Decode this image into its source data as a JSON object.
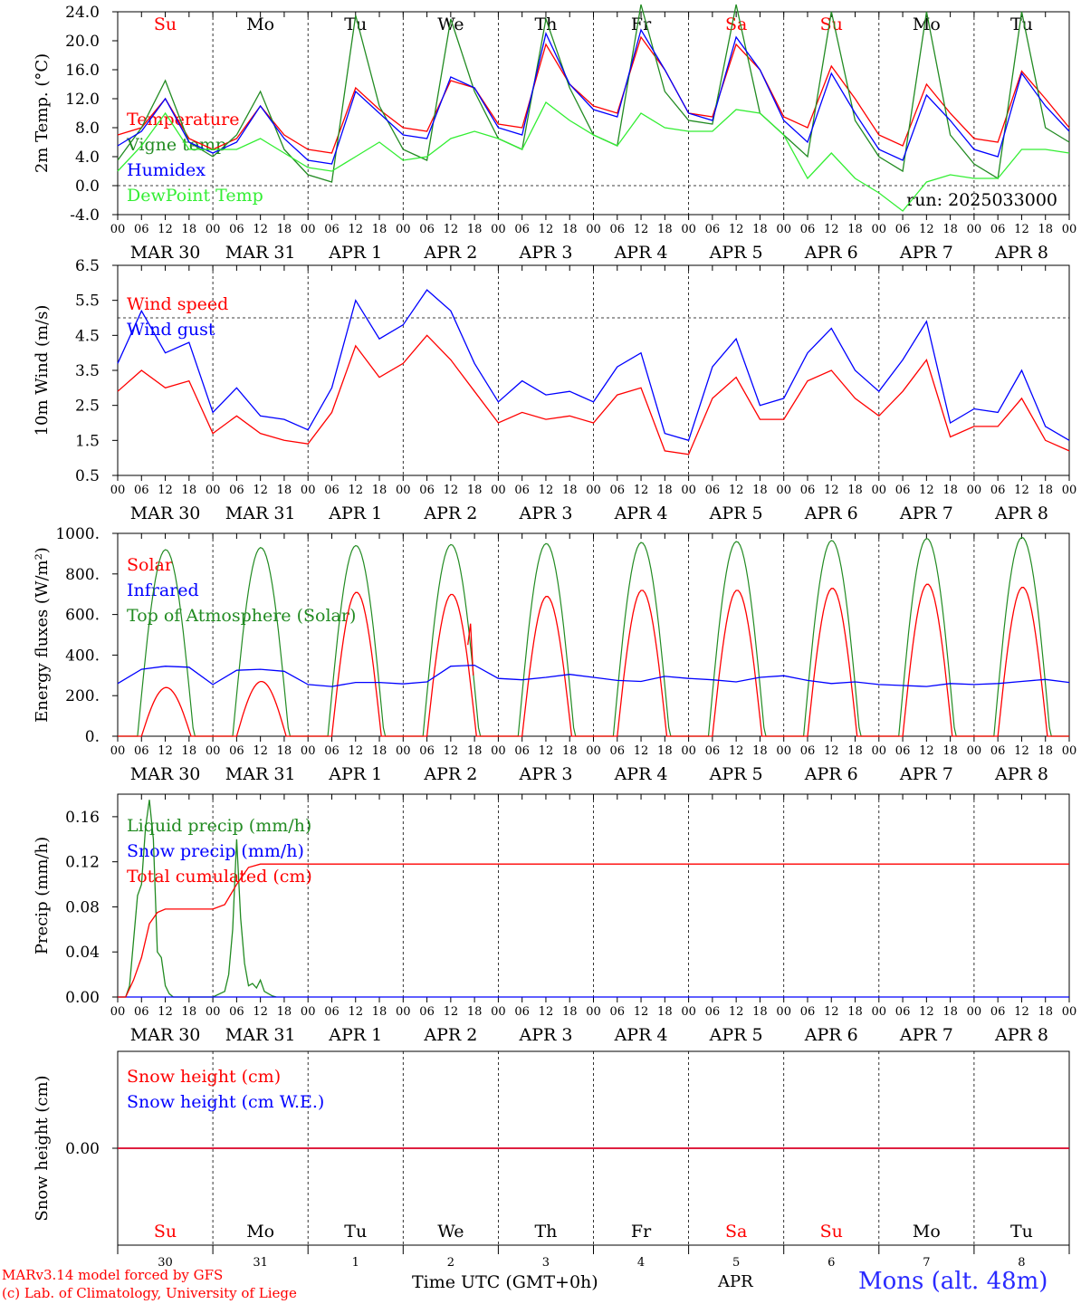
{
  "chart_data": [
    {
      "type": "line",
      "ylabel": "2m Temp. (°C)",
      "ylim": [
        -4,
        24
      ],
      "yticks": [
        "-4.0",
        "0.0",
        "4.0",
        "8.0",
        "12.0",
        "16.0",
        "20.0",
        "24.0"
      ],
      "run_label": "run: 2025033000",
      "day_abbr": [
        "Su",
        "Mo",
        "Tu",
        "We",
        "Th",
        "Fr",
        "Sa",
        "Su",
        "Mo",
        "Tu"
      ],
      "weekend_color": "#ff0000",
      "x_unit": "hours since 2025-03-30 00 UTC",
      "series": [
        {
          "name": "Temperature",
          "color": "#ff0000",
          "x": [
            0,
            6,
            12,
            18,
            24,
            30,
            36,
            42,
            48,
            54,
            60,
            66,
            72,
            78,
            84,
            90,
            96,
            102,
            108,
            114,
            120,
            126,
            132,
            138,
            144,
            150,
            156,
            162,
            168,
            174,
            180,
            186,
            192,
            198,
            204,
            210,
            216,
            222,
            228,
            234,
            240
          ],
          "y": [
            7,
            8,
            12,
            6.5,
            5,
            6.5,
            11,
            7,
            5,
            4.5,
            13.5,
            10.5,
            8,
            7.5,
            14.5,
            13.5,
            8.5,
            8,
            19.5,
            14,
            11,
            10,
            20.5,
            16,
            10,
            9.5,
            19.5,
            16,
            9.5,
            8,
            16.5,
            12,
            7,
            5.5,
            14,
            10,
            6.5,
            6,
            15.8,
            12,
            8
          ]
        },
        {
          "name": "Vigne temp",
          "color": "#228b22",
          "x": [
            0,
            6,
            12,
            18,
            24,
            30,
            36,
            42,
            48,
            54,
            60,
            66,
            72,
            78,
            84,
            90,
            96,
            102,
            108,
            114,
            120,
            126,
            132,
            138,
            144,
            150,
            156,
            162,
            168,
            174,
            180,
            186,
            192,
            198,
            204,
            210,
            216,
            222,
            228,
            234,
            240
          ],
          "y": [
            3.5,
            8,
            14.5,
            6,
            4,
            7,
            13,
            5,
            1.5,
            0.5,
            23.5,
            11,
            5,
            3.5,
            23,
            13,
            6.5,
            5,
            23,
            13.5,
            7,
            5.5,
            25,
            13,
            9,
            8.5,
            25,
            10,
            7,
            4,
            24,
            9,
            4,
            2,
            24,
            7,
            3,
            1,
            24,
            8,
            6
          ]
        },
        {
          "name": "Humidex",
          "color": "#0000ff",
          "x": [
            0,
            6,
            12,
            18,
            24,
            30,
            36,
            42,
            48,
            54,
            60,
            66,
            72,
            78,
            84,
            90,
            96,
            102,
            108,
            114,
            120,
            126,
            132,
            138,
            144,
            150,
            156,
            162,
            168,
            174,
            180,
            186,
            192,
            198,
            204,
            210,
            216,
            222,
            228,
            234,
            240
          ],
          "y": [
            5.5,
            7.5,
            12,
            6,
            4.5,
            6,
            11,
            6.5,
            3.5,
            3,
            13,
            10,
            7,
            6.5,
            15,
            13.5,
            8,
            7,
            21,
            14,
            10.5,
            9.5,
            21.5,
            16,
            10,
            9,
            20.5,
            16,
            9,
            6,
            15.5,
            10,
            5,
            3.5,
            12.5,
            9,
            5,
            4,
            15.5,
            11,
            7.5
          ]
        },
        {
          "name": "DewPoint Temp",
          "color": "#33ee33",
          "x": [
            0,
            6,
            12,
            18,
            24,
            30,
            36,
            42,
            48,
            54,
            60,
            66,
            72,
            78,
            84,
            90,
            96,
            102,
            108,
            114,
            120,
            126,
            132,
            138,
            144,
            150,
            156,
            162,
            168,
            174,
            180,
            186,
            192,
            198,
            204,
            210,
            216,
            222,
            228,
            234,
            240
          ],
          "y": [
            2,
            5.5,
            10,
            5,
            5,
            5,
            6.5,
            4.5,
            2.5,
            2,
            4,
            6,
            3.5,
            4,
            6.5,
            7.5,
            6.5,
            5,
            11.5,
            9,
            7,
            5.5,
            10,
            8,
            7.5,
            7.5,
            10.5,
            10,
            7,
            1,
            4.5,
            1,
            -1,
            -3.5,
            0.5,
            1.5,
            1,
            1,
            5,
            5,
            4.5
          ]
        }
      ]
    },
    {
      "type": "line",
      "ylabel": "10m Wind (m/s)",
      "ylim": [
        0.5,
        6.5
      ],
      "yticks": [
        "0.5",
        "1.5",
        "2.5",
        "3.5",
        "4.5",
        "5.5",
        "6.5"
      ],
      "reference_line": 5,
      "series": [
        {
          "name": "Wind speed",
          "color": "#ff0000",
          "x": [
            0,
            6,
            12,
            18,
            24,
            30,
            36,
            42,
            48,
            54,
            60,
            66,
            72,
            78,
            84,
            90,
            96,
            102,
            108,
            114,
            120,
            126,
            132,
            138,
            144,
            150,
            156,
            162,
            168,
            174,
            180,
            186,
            192,
            198,
            204,
            210,
            216,
            222,
            228,
            234,
            240
          ],
          "y": [
            2.9,
            3.5,
            3.0,
            3.2,
            1.7,
            2.2,
            1.7,
            1.5,
            1.4,
            2.3,
            4.2,
            3.3,
            3.7,
            4.5,
            3.8,
            2.9,
            2.0,
            2.3,
            2.1,
            2.2,
            2.0,
            2.8,
            3.0,
            1.2,
            1.1,
            2.7,
            3.3,
            2.1,
            2.1,
            3.2,
            3.5,
            2.7,
            2.2,
            2.9,
            3.8,
            1.6,
            1.9,
            1.9,
            2.7,
            1.5,
            1.2
          ]
        },
        {
          "name": "Wind gust",
          "color": "#0000ff",
          "x": [
            0,
            6,
            12,
            18,
            24,
            30,
            36,
            42,
            48,
            54,
            60,
            66,
            72,
            78,
            84,
            90,
            96,
            102,
            108,
            114,
            120,
            126,
            132,
            138,
            144,
            150,
            156,
            162,
            168,
            174,
            180,
            186,
            192,
            198,
            204,
            210,
            216,
            222,
            228,
            234,
            240
          ],
          "y": [
            3.7,
            5.2,
            4.0,
            4.3,
            2.3,
            3.0,
            2.2,
            2.1,
            1.8,
            3.0,
            5.5,
            4.4,
            4.8,
            5.8,
            5.2,
            3.7,
            2.6,
            3.2,
            2.8,
            2.9,
            2.6,
            3.6,
            4.0,
            1.7,
            1.5,
            3.6,
            4.4,
            2.5,
            2.7,
            4.0,
            4.7,
            3.5,
            2.9,
            3.8,
            4.9,
            2.0,
            2.4,
            2.3,
            3.5,
            1.9,
            1.5
          ]
        }
      ]
    },
    {
      "type": "line",
      "ylabel": "Energy fluxes (W/m²)",
      "ylim": [
        0,
        1000
      ],
      "yticks": [
        "0.",
        "200.",
        "400.",
        "600.",
        "800.",
        "1000."
      ],
      "series": [
        {
          "name": "Solar",
          "color": "#ff0000",
          "day_peaks": [
            240,
            270,
            710,
            700,
            690,
            720,
            720,
            730,
            750,
            735
          ],
          "extra_spike": {
            "x": 89,
            "y": 555
          }
        },
        {
          "name": "Infrared",
          "color": "#0000ff",
          "x": [
            0,
            6,
            12,
            18,
            24,
            30,
            36,
            42,
            48,
            54,
            60,
            66,
            72,
            78,
            84,
            90,
            96,
            102,
            108,
            114,
            120,
            126,
            132,
            138,
            144,
            150,
            156,
            162,
            168,
            174,
            180,
            186,
            192,
            198,
            204,
            210,
            216,
            222,
            228,
            234,
            240
          ],
          "y": [
            260,
            330,
            345,
            340,
            255,
            325,
            330,
            320,
            255,
            245,
            265,
            265,
            258,
            268,
            345,
            350,
            285,
            278,
            290,
            305,
            290,
            275,
            270,
            295,
            285,
            278,
            268,
            290,
            298,
            275,
            260,
            268,
            255,
            250,
            245,
            260,
            255,
            260,
            270,
            280,
            265
          ]
        },
        {
          "name": "Top of Atmosphere (Solar)",
          "color": "#228b22",
          "day_peaks": [
            920,
            930,
            940,
            945,
            950,
            955,
            960,
            965,
            975,
            980
          ]
        }
      ]
    },
    {
      "type": "line",
      "ylabel": "Precip (mm/h)",
      "ylim": [
        0,
        0.18
      ],
      "yticks": [
        "0.00",
        "0.04",
        "0.08",
        "0.12",
        "0.16"
      ],
      "series": [
        {
          "name": "Liquid precip (mm/h)",
          "color": "#228b22",
          "x": [
            0,
            2,
            3,
            4,
            5,
            6,
            7,
            8,
            9,
            10,
            11,
            12,
            13,
            14,
            24,
            27,
            28,
            29,
            30,
            31,
            32,
            33,
            34,
            35,
            36,
            37,
            38,
            39,
            40
          ],
          "y": [
            0,
            0,
            0.01,
            0.05,
            0.09,
            0.1,
            0.15,
            0.175,
            0.14,
            0.04,
            0.035,
            0.01,
            0.003,
            0,
            0,
            0.005,
            0.02,
            0.06,
            0.14,
            0.07,
            0.03,
            0.01,
            0.012,
            0.008,
            0.015,
            0.005,
            0.003,
            0.001,
            0
          ]
        },
        {
          "name": "Snow precip (mm/h)",
          "color": "#0000ff",
          "x": [
            0,
            240
          ],
          "y": [
            0,
            0
          ]
        },
        {
          "name": "Total cumulated (cm)",
          "color": "#ff0000",
          "x": [
            0,
            2,
            4,
            6,
            8,
            10,
            12,
            24,
            27,
            30,
            33,
            36,
            240
          ],
          "y": [
            0,
            0,
            0.015,
            0.035,
            0.065,
            0.075,
            0.078,
            0.078,
            0.082,
            0.1,
            0.115,
            0.118,
            0.118
          ]
        }
      ]
    },
    {
      "type": "line",
      "ylabel": "Snow height (cm)",
      "yticks": [
        "0.00"
      ],
      "series": [
        {
          "name": "Snow height (cm)",
          "color": "#ff0000",
          "x": [
            0,
            240
          ],
          "y": [
            0,
            0
          ]
        },
        {
          "name": "Snow height (cm W.E.)",
          "color": "#0000ff",
          "x": [
            0,
            240
          ],
          "y": [
            0,
            0
          ]
        }
      ],
      "bottom_day_labels": [
        "Su",
        "Mo",
        "Tu",
        "We",
        "Th",
        "Fr",
        "Sa",
        "Su",
        "Mo",
        "Tu"
      ],
      "bottom_day_numbers": [
        "30",
        "31",
        "1",
        "2",
        "3",
        "4",
        "5",
        "6",
        "7",
        "8"
      ]
    }
  ],
  "x_axis": {
    "hour_ticks": [
      "00",
      "06",
      "12",
      "18"
    ],
    "date_labels": [
      "MAR 30",
      "MAR 31",
      "APR  1",
      "APR  2",
      "APR  3",
      "APR  4",
      "APR  5",
      "APR  6",
      "APR  7",
      "APR  8"
    ],
    "end_tick": "00"
  },
  "footer": {
    "credit_line1": "MARv3.14 model forced by GFS",
    "credit_line2": "(c) Lab. of Climatology, University of Liege",
    "time_label": "Time UTC (GMT+0h)",
    "month_label": "APR",
    "station": "Mons (alt. 48m)"
  }
}
